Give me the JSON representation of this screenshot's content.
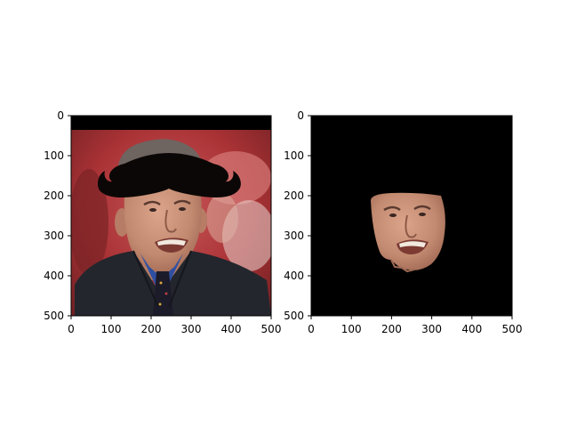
{
  "chart_data": [
    {
      "type": "image",
      "content": "photo of a man in a suit with a black mustache overlay on his face",
      "xlim": [
        0,
        500
      ],
      "ylim": [
        500,
        0
      ],
      "xticks": [
        0,
        100,
        200,
        300,
        400,
        500
      ],
      "yticks": [
        0,
        100,
        200,
        300,
        400,
        500
      ],
      "xticklabels": [
        "0",
        "100",
        "200",
        "300",
        "400",
        "500"
      ],
      "yticklabels": [
        "0",
        "100",
        "200",
        "300",
        "400",
        "500"
      ]
    },
    {
      "type": "image",
      "content": "segmented face of the same man on a black background",
      "xlim": [
        0,
        500
      ],
      "ylim": [
        500,
        0
      ],
      "xticks": [
        0,
        100,
        200,
        300,
        400,
        500
      ],
      "yticks": [
        0,
        100,
        200,
        300,
        400,
        500
      ],
      "xticklabels": [
        "0",
        "100",
        "200",
        "300",
        "400",
        "500"
      ],
      "yticklabels": [
        "0",
        "100",
        "200",
        "300",
        "400",
        "500"
      ]
    }
  ],
  "colors": {
    "axis": "#000000",
    "mask_background": "#000000",
    "mustache": "#0b0706",
    "skin": "#c58f77",
    "suit": "#23262d",
    "photo_background": "#b8393b"
  }
}
